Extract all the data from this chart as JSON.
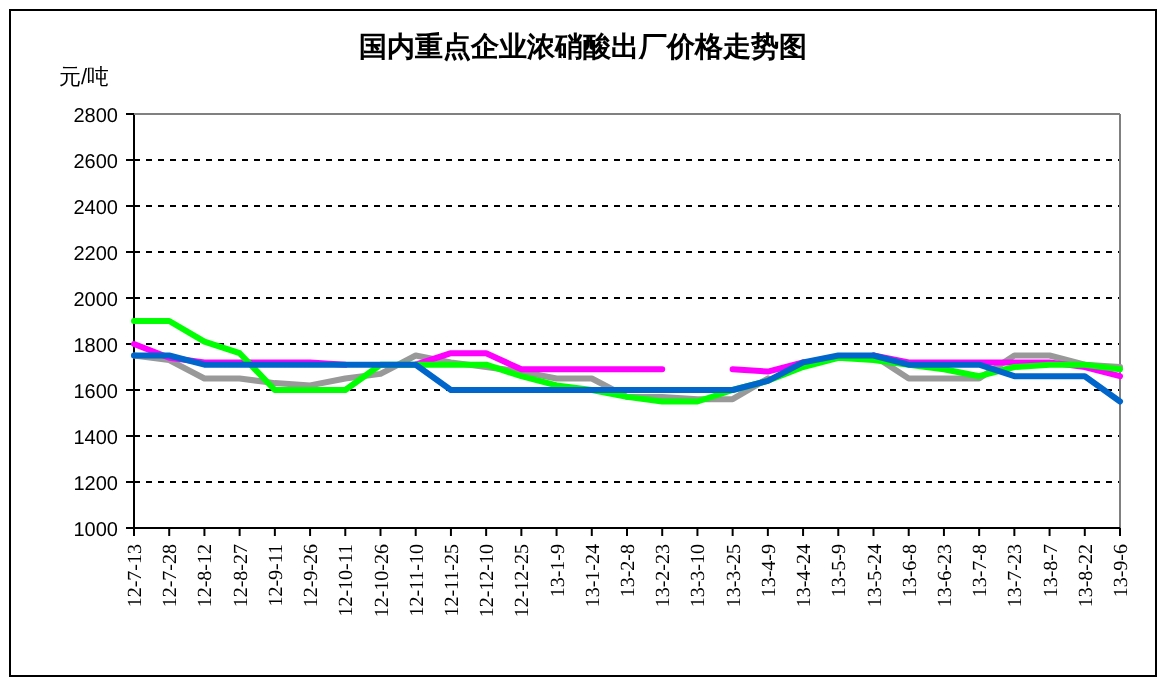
{
  "chart_data": {
    "type": "line",
    "title": "国内重点企业浓硝酸出厂价格走势图",
    "ylabel": "元/吨",
    "categories": [
      "12-7-13",
      "12-7-28",
      "12-8-12",
      "12-8-27",
      "12-9-11",
      "12-9-26",
      "12-10-11",
      "12-10-26",
      "12-11-10",
      "12-11-25",
      "12-12-10",
      "12-12-25",
      "13-1-9",
      "13-1-24",
      "13-2-8",
      "13-2-23",
      "13-3-10",
      "13-3-25",
      "13-4-9",
      "13-4-24",
      "13-5-9",
      "13-5-24",
      "13-6-8",
      "13-6-23",
      "13-7-8",
      "13-7-23",
      "13-8-7",
      "13-8-22",
      "13-9-6"
    ],
    "series": [
      {
        "color": "#999999",
        "values": [
          1750,
          1730,
          1650,
          1650,
          1630,
          1620,
          1650,
          1670,
          1750,
          1720,
          1700,
          1680,
          1650,
          1650,
          1570,
          1570,
          1560,
          1560,
          1650,
          null,
          null,
          1750,
          1650,
          1650,
          1650,
          1750,
          1750,
          1710,
          1700
        ]
      },
      {
        "color": "#ff00ff",
        "values": [
          1800,
          1740,
          1720,
          1720,
          1720,
          1720,
          1710,
          null,
          1710,
          1760,
          1760,
          1690,
          1690,
          1690,
          1690,
          1690,
          null,
          1690,
          1680,
          1720,
          null,
          1750,
          1720,
          1720,
          1720,
          1720,
          1720,
          1700,
          1660
        ]
      },
      {
        "color": "#00ff00",
        "values": [
          1900,
          1900,
          1810,
          1760,
          1600,
          1600,
          1600,
          1710,
          1710,
          1710,
          1710,
          1660,
          1620,
          1600,
          1570,
          1550,
          1550,
          1600,
          1640,
          1700,
          1740,
          1730,
          1710,
          1690,
          1660,
          1700,
          1710,
          1710,
          1690
        ]
      },
      {
        "color": "#0066cc",
        "values": [
          1750,
          1750,
          1710,
          1710,
          1710,
          1710,
          1710,
          1710,
          1710,
          1600,
          1600,
          1600,
          1600,
          1600,
          1600,
          1600,
          1600,
          1600,
          1640,
          1720,
          1750,
          1750,
          1710,
          1710,
          1710,
          1660,
          1660,
          1660,
          1550
        ]
      }
    ],
    "ylim": [
      1000,
      2800
    ],
    "yticks": [
      1000,
      1200,
      1400,
      1600,
      1800,
      2000,
      2200,
      2400,
      2600,
      2800
    ],
    "grid": "y",
    "line_style": "solid",
    "marker": "none"
  }
}
